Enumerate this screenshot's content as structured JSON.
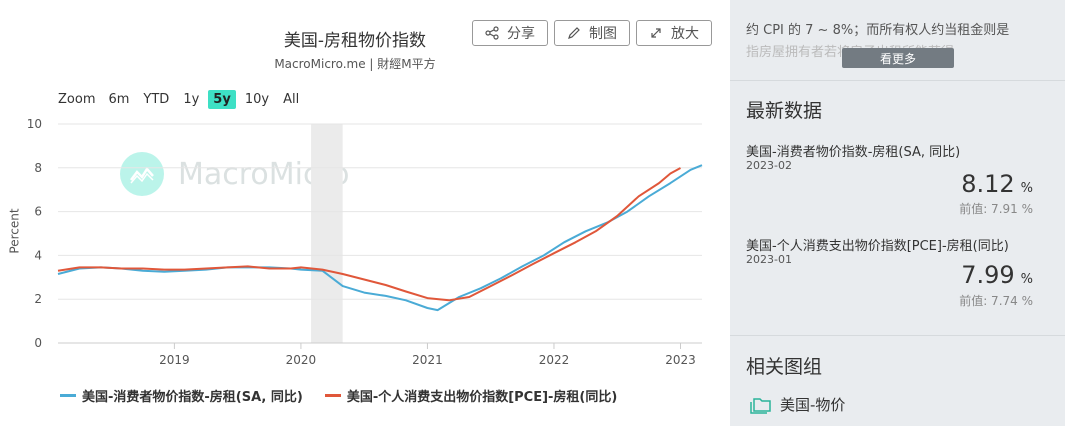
{
  "header": {
    "title": "美国-房租物价指数",
    "subtitle": "MacroMicro.me | 財經M平方",
    "share_label": "分享",
    "draw_label": "制图",
    "enlarge_label": "放大"
  },
  "zoom": {
    "label": "Zoom",
    "options": [
      "6m",
      "YTD",
      "1y",
      "5y",
      "10y",
      "All"
    ],
    "active": "5y"
  },
  "watermark": "MacroMicro",
  "colors": {
    "series_cpi": "#4aabd6",
    "series_pce": "#e0573a",
    "accent": "#3ee0c5",
    "recession_band": "#ebebeb"
  },
  "chart_data": {
    "type": "line",
    "ylabel": "Percent",
    "ylim": [
      0,
      10
    ],
    "yticks": [
      0,
      2,
      4,
      6,
      8,
      10
    ],
    "xlim": [
      2018.08,
      2023.17
    ],
    "xticks": [
      {
        "v": 2019,
        "label": "2019"
      },
      {
        "v": 2020,
        "label": "2020"
      },
      {
        "v": 2021,
        "label": "2021"
      },
      {
        "v": 2022,
        "label": "2022"
      },
      {
        "v": 2023,
        "label": "2023"
      }
    ],
    "shaded_ranges": [
      [
        2020.08,
        2020.33
      ]
    ],
    "grid": "horizontal",
    "legend_placement": "bottom",
    "series": [
      {
        "name": "美国-消费者物价指数-房租(SA, 同比)",
        "color_key": "series_cpi",
        "points": [
          [
            2018.08,
            3.15
          ],
          [
            2018.25,
            3.4
          ],
          [
            2018.42,
            3.45
          ],
          [
            2018.58,
            3.4
          ],
          [
            2018.75,
            3.3
          ],
          [
            2018.92,
            3.25
          ],
          [
            2019.08,
            3.3
          ],
          [
            2019.25,
            3.35
          ],
          [
            2019.42,
            3.45
          ],
          [
            2019.58,
            3.45
          ],
          [
            2019.75,
            3.45
          ],
          [
            2019.92,
            3.4
          ],
          [
            2020.0,
            3.35
          ],
          [
            2020.17,
            3.3
          ],
          [
            2020.33,
            2.6
          ],
          [
            2020.5,
            2.3
          ],
          [
            2020.67,
            2.15
          ],
          [
            2020.83,
            1.95
          ],
          [
            2021.0,
            1.6
          ],
          [
            2021.08,
            1.5
          ],
          [
            2021.25,
            2.1
          ],
          [
            2021.42,
            2.5
          ],
          [
            2021.58,
            2.95
          ],
          [
            2021.75,
            3.5
          ],
          [
            2021.92,
            4.0
          ],
          [
            2022.08,
            4.6
          ],
          [
            2022.25,
            5.1
          ],
          [
            2022.42,
            5.5
          ],
          [
            2022.58,
            6.0
          ],
          [
            2022.75,
            6.7
          ],
          [
            2022.92,
            7.3
          ],
          [
            2023.08,
            7.91
          ],
          [
            2023.17,
            8.12
          ]
        ]
      },
      {
        "name": "美国-个人消费支出物价指数[PCE]-房租(同比)",
        "color_key": "series_pce",
        "points": [
          [
            2018.08,
            3.3
          ],
          [
            2018.25,
            3.45
          ],
          [
            2018.42,
            3.45
          ],
          [
            2018.58,
            3.4
          ],
          [
            2018.75,
            3.4
          ],
          [
            2018.92,
            3.35
          ],
          [
            2019.08,
            3.35
          ],
          [
            2019.25,
            3.4
          ],
          [
            2019.42,
            3.45
          ],
          [
            2019.58,
            3.5
          ],
          [
            2019.75,
            3.4
          ],
          [
            2019.92,
            3.4
          ],
          [
            2020.0,
            3.45
          ],
          [
            2020.17,
            3.35
          ],
          [
            2020.33,
            3.15
          ],
          [
            2020.5,
            2.9
          ],
          [
            2020.67,
            2.65
          ],
          [
            2020.83,
            2.35
          ],
          [
            2021.0,
            2.05
          ],
          [
            2021.17,
            1.95
          ],
          [
            2021.33,
            2.1
          ],
          [
            2021.5,
            2.6
          ],
          [
            2021.67,
            3.1
          ],
          [
            2021.83,
            3.6
          ],
          [
            2022.0,
            4.1
          ],
          [
            2022.17,
            4.6
          ],
          [
            2022.33,
            5.1
          ],
          [
            2022.5,
            5.8
          ],
          [
            2022.67,
            6.7
          ],
          [
            2022.83,
            7.3
          ],
          [
            2022.92,
            7.74
          ],
          [
            2023.0,
            7.99
          ]
        ]
      }
    ]
  },
  "sidebar": {
    "description_line1": "约 CPI 的 7 ~ 8%；而所有权人约当租金则是",
    "description_line2": "指房屋拥有者若将房子出租所能获得",
    "more_label": "看更多",
    "latest_title": "最新数据",
    "indicators": [
      {
        "name": "美国-消费者物价指数-房租(SA, 同比)",
        "date": "2023-02",
        "value": "8.12",
        "unit": "%",
        "prev": "前值: 7.91 %"
      },
      {
        "name": "美国-个人消费支出物价指数[PCE]-房租(同比)",
        "date": "2023-01",
        "value": "7.99",
        "unit": "%",
        "prev": "前值: 7.74 %"
      }
    ],
    "related_title": "相关图组",
    "related_item": "美国-物价"
  }
}
